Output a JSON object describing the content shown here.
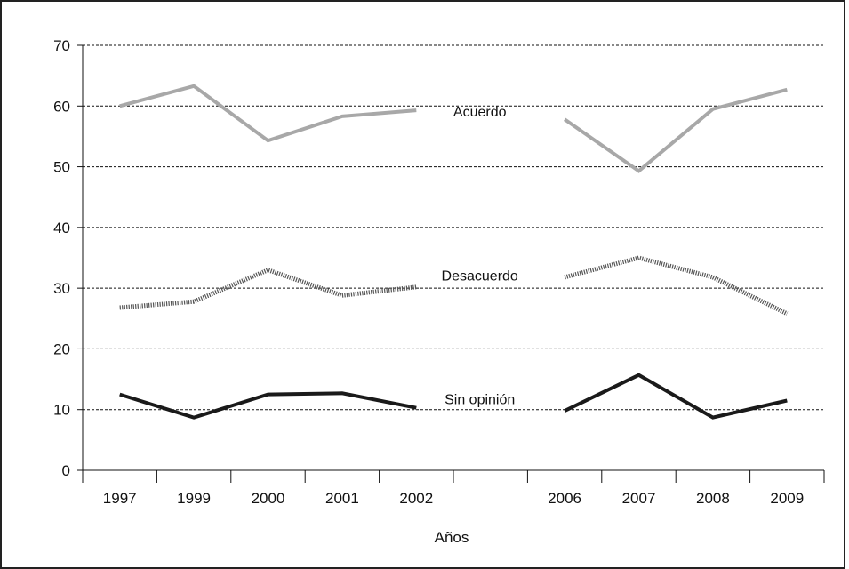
{
  "chart_data": {
    "type": "line",
    "title": "",
    "xlabel": "Años",
    "ylabel": "",
    "ylim": [
      0,
      70
    ],
    "yticks": [
      0,
      10,
      20,
      30,
      40,
      50,
      60,
      70
    ],
    "grid": "horizontal-dashed",
    "categories": [
      "1997",
      "1999",
      "2000",
      "2001",
      "2002",
      "",
      "2006",
      "2007",
      "2008",
      "2009"
    ],
    "series": [
      {
        "name": "Acuerdo",
        "color": "#a8a8a8",
        "style": "solid",
        "values": [
          60,
          63.3,
          54.3,
          58.3,
          59.3,
          null,
          57.8,
          49.3,
          59.5,
          62.7
        ]
      },
      {
        "name": "Desacuerdo",
        "color": "#555555",
        "style": "dotted",
        "values": [
          26.8,
          27.8,
          33,
          28.8,
          30.2,
          null,
          31.8,
          35,
          31.8,
          25.8
        ]
      },
      {
        "name": "Sin opinión",
        "color": "#1a1a1a",
        "style": "solid",
        "values": [
          12.5,
          8.7,
          12.5,
          12.7,
          10.3,
          null,
          9.8,
          15.7,
          8.7,
          11.5
        ]
      }
    ]
  }
}
